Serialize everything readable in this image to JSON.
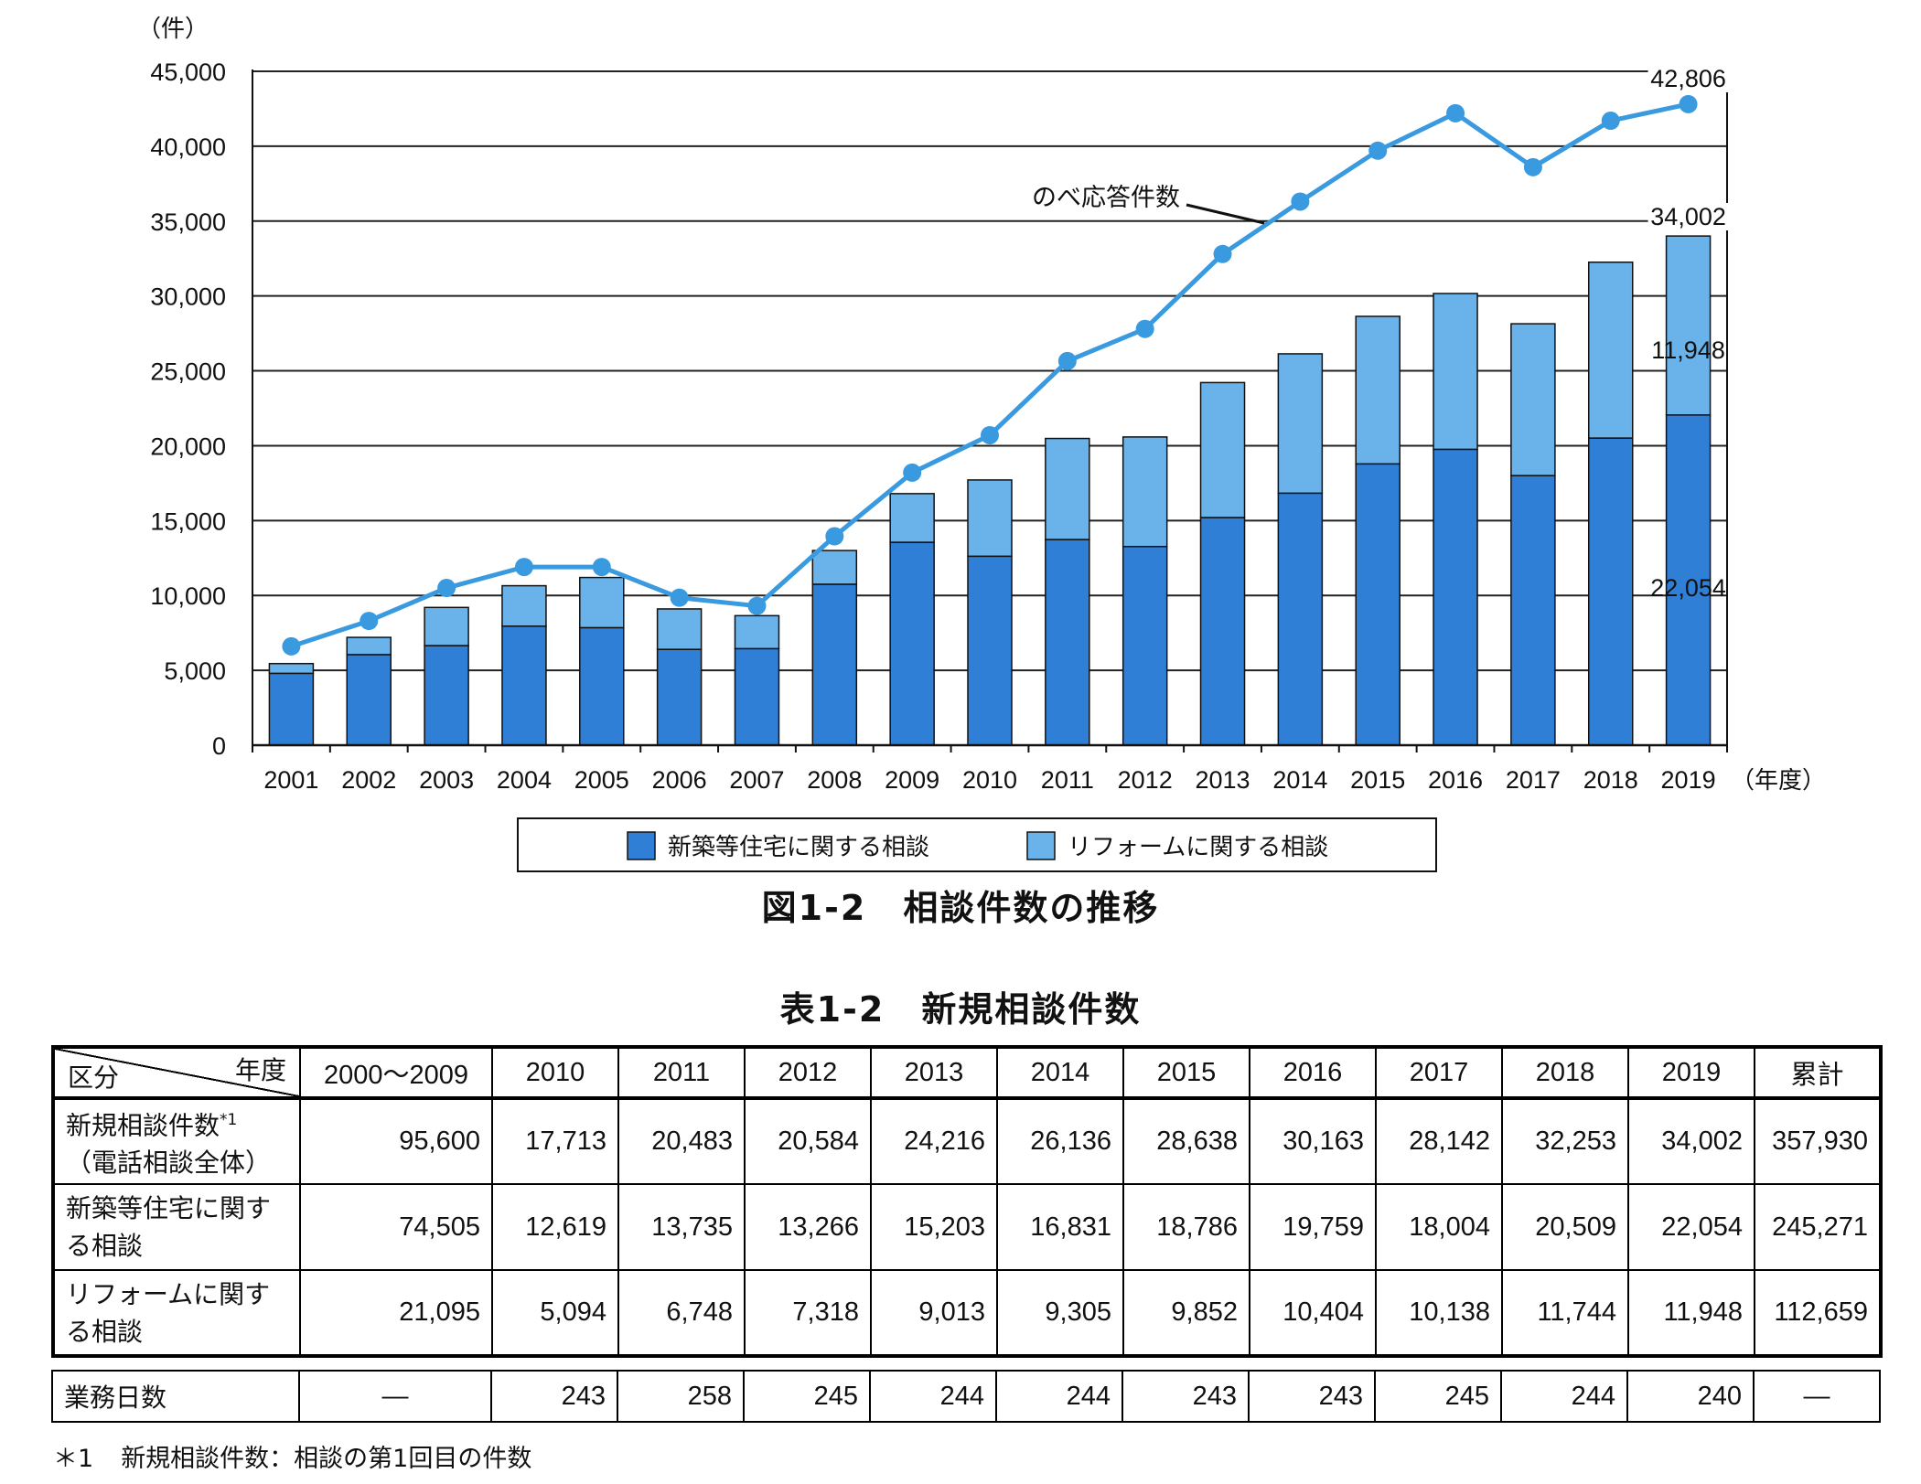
{
  "chart_data": {
    "type": "bar",
    "stacked": true,
    "y_unit": "（件）",
    "x_unit": "（年度）",
    "ylim": [
      0,
      45000
    ],
    "y_ticks": [
      "0",
      "5,000",
      "10,000",
      "15,000",
      "20,000",
      "25,000",
      "30,000",
      "35,000",
      "40,000",
      "45,000"
    ],
    "grid": true,
    "categories": [
      "2001",
      "2002",
      "2003",
      "2004",
      "2005",
      "2006",
      "2007",
      "2008",
      "2009",
      "2010",
      "2011",
      "2012",
      "2013",
      "2014",
      "2015",
      "2016",
      "2017",
      "2018",
      "2019"
    ],
    "series": [
      {
        "name": "新築等住宅に関する相談",
        "type": "bar",
        "color": "#2f7fd6",
        "values": [
          4800,
          6050,
          6650,
          7950,
          7850,
          6400,
          6450,
          10750,
          13550,
          12619,
          13735,
          13266,
          15203,
          16831,
          18786,
          19759,
          18004,
          20509,
          22054
        ]
      },
      {
        "name": "リフォームに関する相談",
        "type": "bar",
        "color": "#6ab2ea",
        "values": [
          650,
          1150,
          2550,
          2700,
          3350,
          2700,
          2200,
          2250,
          3250,
          5094,
          6748,
          7318,
          9013,
          9305,
          9852,
          10404,
          10138,
          11744,
          11948
        ]
      },
      {
        "name": "のべ応答件数",
        "type": "line",
        "color": "#3a9ae0",
        "values": [
          6600,
          8300,
          10500,
          11900,
          11900,
          9850,
          9300,
          13950,
          18200,
          20700,
          25650,
          27800,
          32800,
          36300,
          39700,
          42200,
          38600,
          41700,
          42806
        ]
      }
    ],
    "annotations": {
      "line_label": "のべ応答件数",
      "last_total": "42,806",
      "last_bar_total": "34,002",
      "last_reform": "11,948",
      "last_new": "22,054"
    },
    "legend": {
      "position": "bottom",
      "items": [
        "新築等住宅に関する相談",
        "リフォームに関する相談"
      ]
    }
  },
  "figure_caption": "図1-2　相談件数の推移",
  "table": {
    "caption": "表1-2　新規相談件数",
    "corner_top": "年度",
    "corner_bottom": "区分",
    "columns": [
      "2000～2009",
      "2010",
      "2011",
      "2012",
      "2013",
      "2014",
      "2015",
      "2016",
      "2017",
      "2018",
      "2019",
      "累計"
    ],
    "rows": [
      {
        "label_line1": "新規相談件数",
        "label_sup": "*1",
        "label_line2": "（電話相談全体）",
        "values": [
          "95,600",
          "17,713",
          "20,483",
          "20,584",
          "24,216",
          "26,136",
          "28,638",
          "30,163",
          "28,142",
          "32,253",
          "34,002",
          "357,930"
        ]
      },
      {
        "label_line1": "新築等住宅に関す",
        "label_sup": "",
        "label_line2": "る相談",
        "values": [
          "74,505",
          "12,619",
          "13,735",
          "13,266",
          "15,203",
          "16,831",
          "18,786",
          "19,759",
          "18,004",
          "20,509",
          "22,054",
          "245,271"
        ]
      },
      {
        "label_line1": "リフォームに関す",
        "label_sup": "",
        "label_line2": "る相談",
        "values": [
          "21,095",
          "5,094",
          "6,748",
          "7,318",
          "9,013",
          "9,305",
          "9,852",
          "10,404",
          "10,138",
          "11,744",
          "11,948",
          "112,659"
        ]
      }
    ],
    "work_days": {
      "label": "業務日数",
      "values": [
        "—",
        "243",
        "258",
        "245",
        "244",
        "244",
        "243",
        "243",
        "245",
        "244",
        "240",
        "—"
      ]
    }
  },
  "footnote": {
    "mark": "＊1",
    "text": "新規相談件数：相談の第1回目の件数"
  }
}
